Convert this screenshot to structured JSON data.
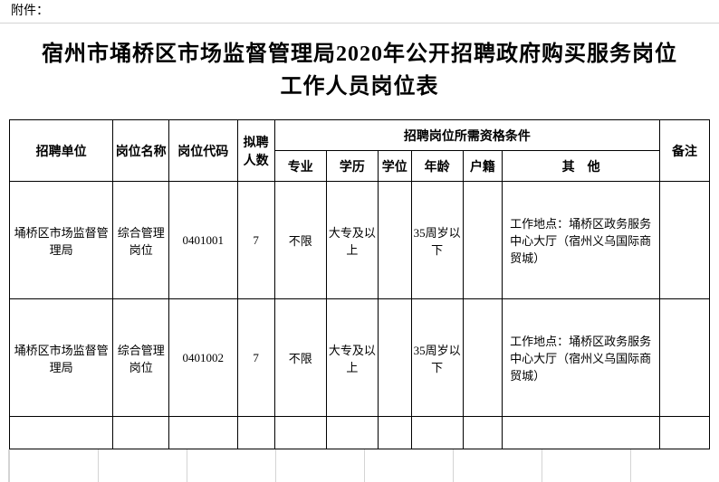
{
  "attachment_label": "附件：",
  "title": "宿州市埇桥区市场监督管理局2020年公开招聘政府购买服务岗位工作人员岗位表",
  "headers": {
    "unit": "招聘单位",
    "position_name": "岗位名称",
    "position_code": "岗位代码",
    "count": "拟聘人数",
    "qualification_group": "招聘岗位所需资格条件",
    "major": "专业",
    "education": "学历",
    "degree": "学位",
    "age": "年龄",
    "registration": "户籍",
    "other": "其　他",
    "remark": "备注"
  },
  "rows": [
    {
      "unit": "埇桥区市场监督管理局",
      "position_name": "综合管理岗位",
      "position_code": "0401001",
      "count": "7",
      "major": "不限",
      "education": "大专及以上",
      "degree": "",
      "age": "35周岁以下",
      "registration": "",
      "other": "工作地点：埇桥区政务服务中心大厅（宿州义乌国际商贸城）",
      "remark": ""
    },
    {
      "unit": "埇桥区市场监督管理局",
      "position_name": "综合管理岗位",
      "position_code": "0401002",
      "count": "7",
      "major": "不限",
      "education": "大专及以上",
      "degree": "",
      "age": "35周岁以下",
      "registration": "",
      "other": "工作地点：埇桥区政务服务中心大厅（宿州义乌国际商贸城）",
      "remark": ""
    }
  ],
  "colors": {
    "border": "#000000",
    "grid": "#d4d4d4",
    "background": "#ffffff"
  }
}
